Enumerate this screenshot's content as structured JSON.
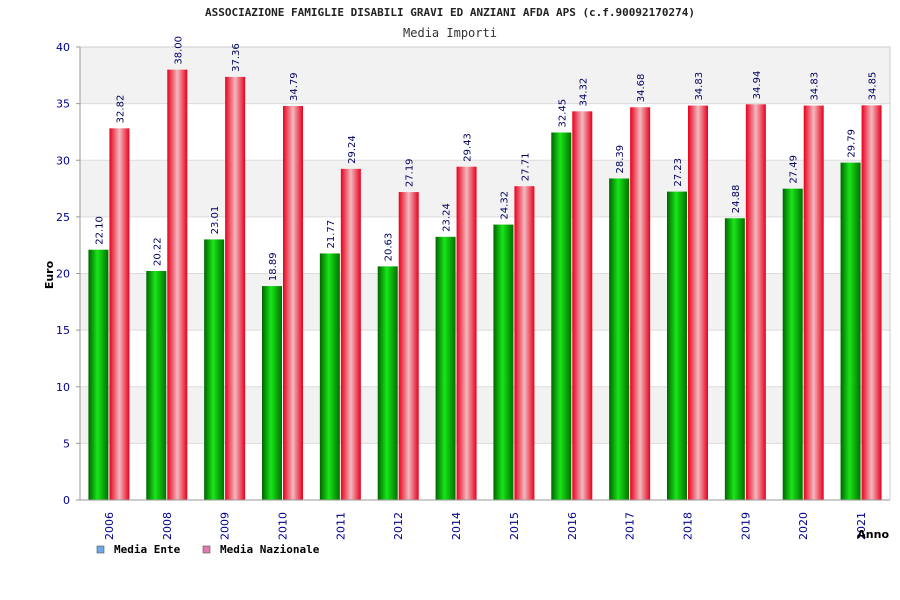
{
  "chart_data": {
    "type": "bar",
    "title": "ASSOCIAZIONE FAMIGLIE DISABILI GRAVI ED ANZIANI AFDA APS (c.f.90092170274)",
    "subtitle": "Media Importi",
    "xlabel": "Anno",
    "ylabel": "Euro",
    "ylim": [
      0,
      40
    ],
    "yticks": [
      0,
      5,
      10,
      15,
      20,
      25,
      30,
      35,
      40
    ],
    "grid": true,
    "legend_position": "bottom-left",
    "categories": [
      "2006",
      "2008",
      "2009",
      "2010",
      "2011",
      "2012",
      "2014",
      "2015",
      "2016",
      "2017",
      "2018",
      "2019",
      "2020",
      "2021"
    ],
    "series": [
      {
        "name": "Media Ente",
        "color": "#00b000",
        "legend_color": "#6aa8e8",
        "values": [
          22.1,
          20.22,
          23.01,
          18.89,
          21.77,
          20.63,
          23.24,
          24.32,
          32.45,
          28.39,
          27.23,
          24.88,
          27.49,
          29.79
        ],
        "labels": [
          "22.10",
          "20.22",
          "23.01",
          "18.89",
          "21.77",
          "20.63",
          "23.24",
          "24.32",
          "32.45",
          "28.39",
          "27.23",
          "24.88",
          "27.49",
          "29.79"
        ]
      },
      {
        "name": "Media Nazionale",
        "color": "#e8102a",
        "legend_color": "#e07ab0",
        "values": [
          32.82,
          38.0,
          37.36,
          34.79,
          29.24,
          27.19,
          29.43,
          27.71,
          34.32,
          34.68,
          34.83,
          34.94,
          34.83,
          34.85
        ],
        "labels": [
          "32.82",
          "38.00",
          "37.36",
          "34.79",
          "29.24",
          "27.19",
          "29.43",
          "27.71",
          "34.32",
          "34.68",
          "34.83",
          "34.94",
          "34.83",
          "34.85"
        ]
      }
    ]
  }
}
